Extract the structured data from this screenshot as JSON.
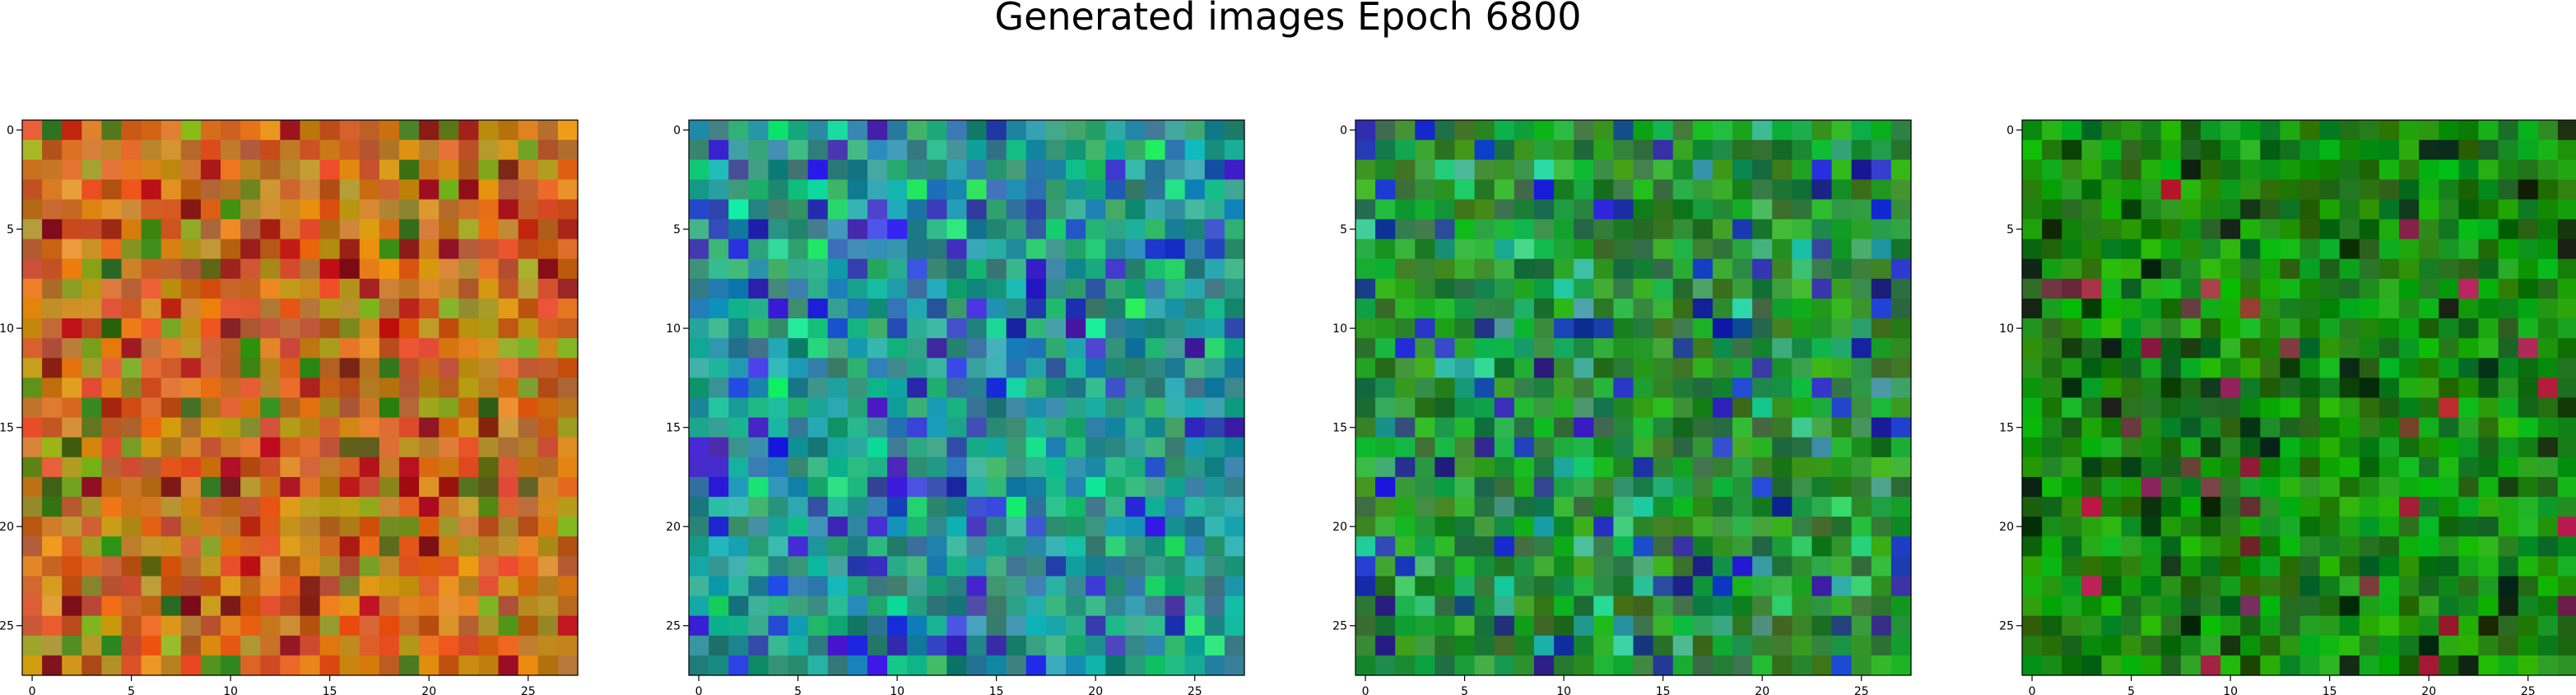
{
  "title": "Generated images Epoch 6800",
  "chart_data": [
    {
      "type": "heatmap",
      "palette": "warm-orange",
      "grid": [
        28,
        28
      ],
      "xticks": [
        0,
        5,
        10,
        15,
        20,
        25
      ],
      "yticks": [
        0,
        5,
        10,
        15,
        20,
        25
      ]
    },
    {
      "type": "heatmap",
      "palette": "teal-blue",
      "grid": [
        28,
        28
      ],
      "xticks": [
        0,
        5,
        10,
        15,
        20,
        25
      ],
      "yticks": [
        0,
        5,
        10,
        15,
        20,
        25
      ]
    },
    {
      "type": "heatmap",
      "palette": "green-blue",
      "grid": [
        28,
        28
      ],
      "xticks": [
        0,
        5,
        10,
        15,
        20,
        25
      ],
      "yticks": [
        0,
        5,
        10,
        15,
        20,
        25
      ]
    },
    {
      "type": "heatmap",
      "palette": "green",
      "grid": [
        28,
        28
      ],
      "xticks": [
        0,
        5,
        10,
        15,
        20,
        25
      ],
      "yticks": [
        0,
        5,
        10,
        15,
        20,
        25
      ]
    }
  ]
}
